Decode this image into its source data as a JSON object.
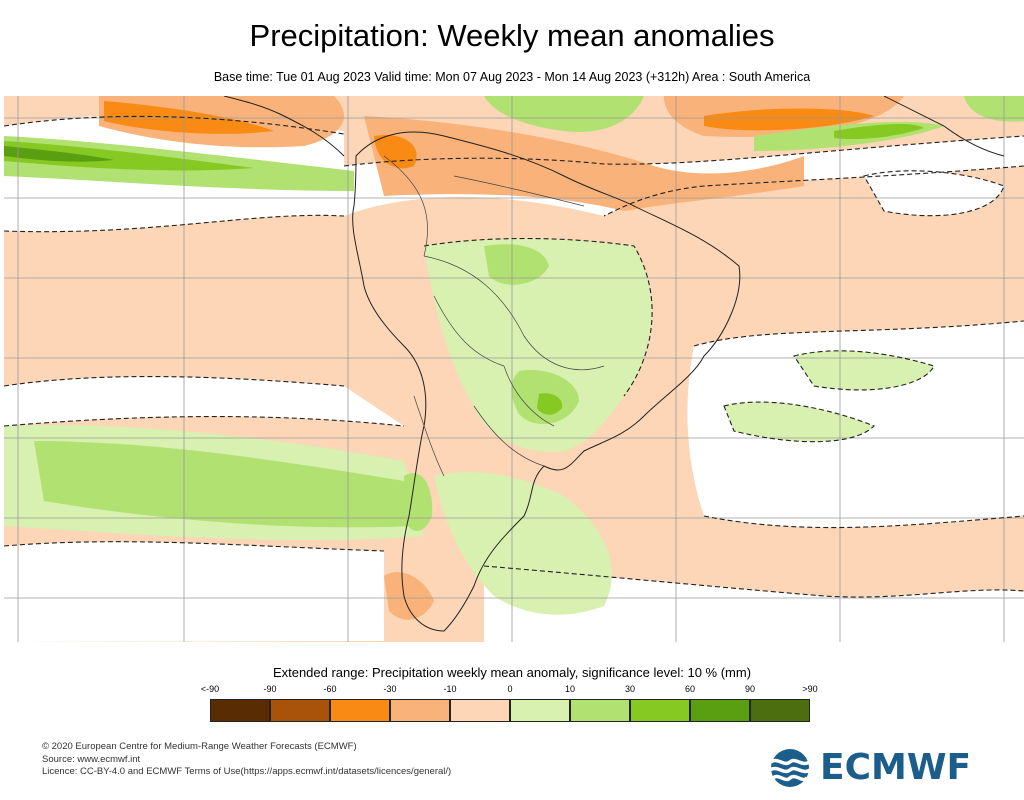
{
  "title": "Precipitation: Weekly mean anomalies",
  "subtitle": "Base time: Tue 01 Aug 2023 Valid time: Mon 07 Aug 2023 - Mon 14 Aug 2023 (+312h) Area : South America",
  "legend": {
    "title": "Extended range: Precipitation weekly mean anomaly, significance level: 10 % (mm)",
    "ticks": [
      "<-90",
      "-90",
      "-60",
      "-30",
      "-10",
      "0",
      "10",
      "30",
      "60",
      "90",
      ">90"
    ],
    "colors": [
      "#5a2c04",
      "#a8520a",
      "#f98a14",
      "#f8b27a",
      "#fcd6b6",
      "#d8f0b0",
      "#b1e171",
      "#86c923",
      "#5a9e12",
      "#4d6e0e"
    ]
  },
  "credits": [
    "© 2020 European Centre for Medium-Range Weather Forecasts (ECMWF)",
    "Source: www.ecmwf.int",
    "Licence: CC-BY-4.0 and ECMWF Terms of Use(https://apps.ecmwf.int/datasets/licences/general/)"
  ],
  "logo": {
    "text": "ECMWF",
    "color": "#1b5e8c"
  },
  "map": {
    "icon": "south-america-precipitation-anomaly-map"
  }
}
